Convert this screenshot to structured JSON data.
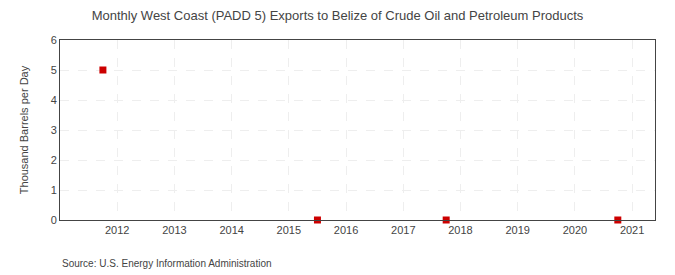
{
  "chart_data": {
    "type": "scatter",
    "title": "Monthly West Coast (PADD 5) Exports to Belize of Crude Oil and Petroleum Products",
    "ylabel": "Thousand Barrels per Day",
    "annotations": [
      "Source: U.S. Energy Information Administration"
    ],
    "x": [
      2011.75,
      2015.5,
      2017.75,
      2020.75
    ],
    "values": [
      5.0,
      0.0,
      0.0,
      0.0
    ],
    "color": "#cc0000",
    "marker": "square",
    "xlim": [
      2011.0,
      2021.4
    ],
    "ylim": [
      0,
      6
    ],
    "xticks": [
      2012,
      2013,
      2014,
      2015,
      2016,
      2017,
      2018,
      2019,
      2020,
      2021
    ],
    "yticks": [
      0,
      1,
      2,
      3,
      4,
      5,
      6
    ],
    "grid": true
  }
}
